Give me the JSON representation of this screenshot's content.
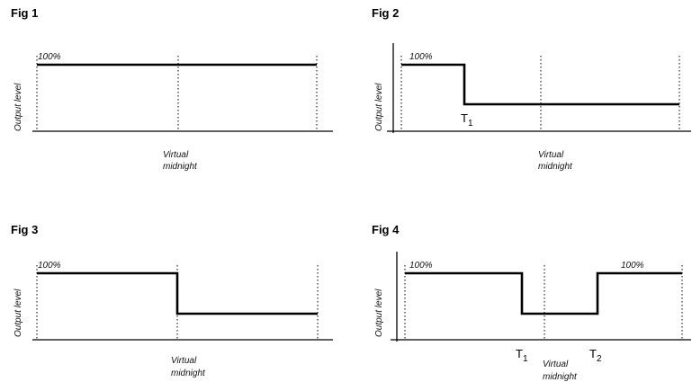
{
  "fig1": {
    "title": "Fig 1",
    "y_label": "Output level",
    "level_label": "100%",
    "midnight_label_line1": "Virtual",
    "midnight_label_line2": "midnight"
  },
  "fig2": {
    "title": "Fig 2",
    "y_label": "Output level",
    "level_label": "100%",
    "t1_label": "T",
    "t1_sub": "1",
    "midnight_label_line1": "Virtual",
    "midnight_label_line2": "midnight"
  },
  "fig3": {
    "title": "Fig 3",
    "y_label": "Output level",
    "level_label": "100%",
    "midnight_label_line1": "Virtual",
    "midnight_label_line2": "midnight"
  },
  "fig4": {
    "title": "Fig 4",
    "y_label": "Output level",
    "level_label_left": "100%",
    "level_label_right": "100%",
    "t1_label": "T",
    "t1_sub": "1",
    "t2_label": "T",
    "t2_sub": "2",
    "midnight_label_line1": "Virtual",
    "midnight_label_line2": "midnight"
  }
}
